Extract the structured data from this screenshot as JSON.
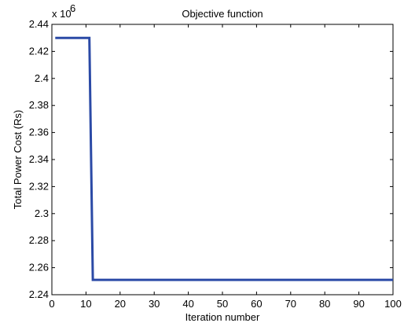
{
  "chart_data": {
    "type": "line",
    "title": "Objective function",
    "xlabel": "Iteration number",
    "ylabel": "Total Power Cost (Rs)",
    "y_exponent_base": "x 10",
    "y_exponent_power": "6",
    "xlim": [
      0,
      100
    ],
    "ylim": [
      2.24,
      2.44
    ],
    "grid": false,
    "x_ticks": [
      0,
      10,
      20,
      30,
      40,
      50,
      60,
      70,
      80,
      90,
      100
    ],
    "y_ticks": [
      2.24,
      2.26,
      2.28,
      2.3,
      2.32,
      2.34,
      2.36,
      2.38,
      2.4,
      2.42,
      2.44
    ],
    "y_tick_labels": [
      "2.24",
      "2.26",
      "2.28",
      "2.3",
      "2.32",
      "2.34",
      "2.36",
      "2.38",
      "2.4",
      "2.42",
      "2.44"
    ],
    "series": [
      {
        "color": "#2b4aa6",
        "x": [
          1,
          11,
          12,
          100
        ],
        "y": [
          2.43,
          2.43,
          2.251,
          2.251
        ]
      }
    ]
  }
}
